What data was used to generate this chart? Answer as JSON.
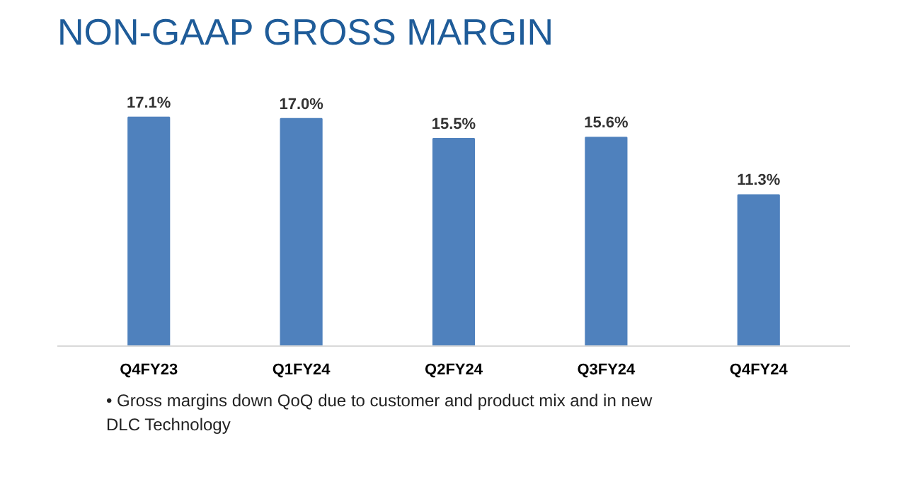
{
  "chart_data": {
    "type": "bar",
    "title": "NON-GAAP GROSS MARGIN",
    "categories": [
      "Q4FY23",
      "Q1FY24",
      "Q2FY24",
      "Q3FY24",
      "Q4FY24"
    ],
    "values": [
      17.1,
      17.0,
      15.5,
      15.6,
      11.3
    ],
    "value_labels": [
      "17.1%",
      "17.0%",
      "15.5%",
      "15.6%",
      "11.3%"
    ],
    "color": "#4f81bd",
    "tick_labels": "x",
    "grid": false,
    "annotations": [
      "• Gross margins down QoQ due to customer and product mix and in new DLC Technology"
    ]
  }
}
